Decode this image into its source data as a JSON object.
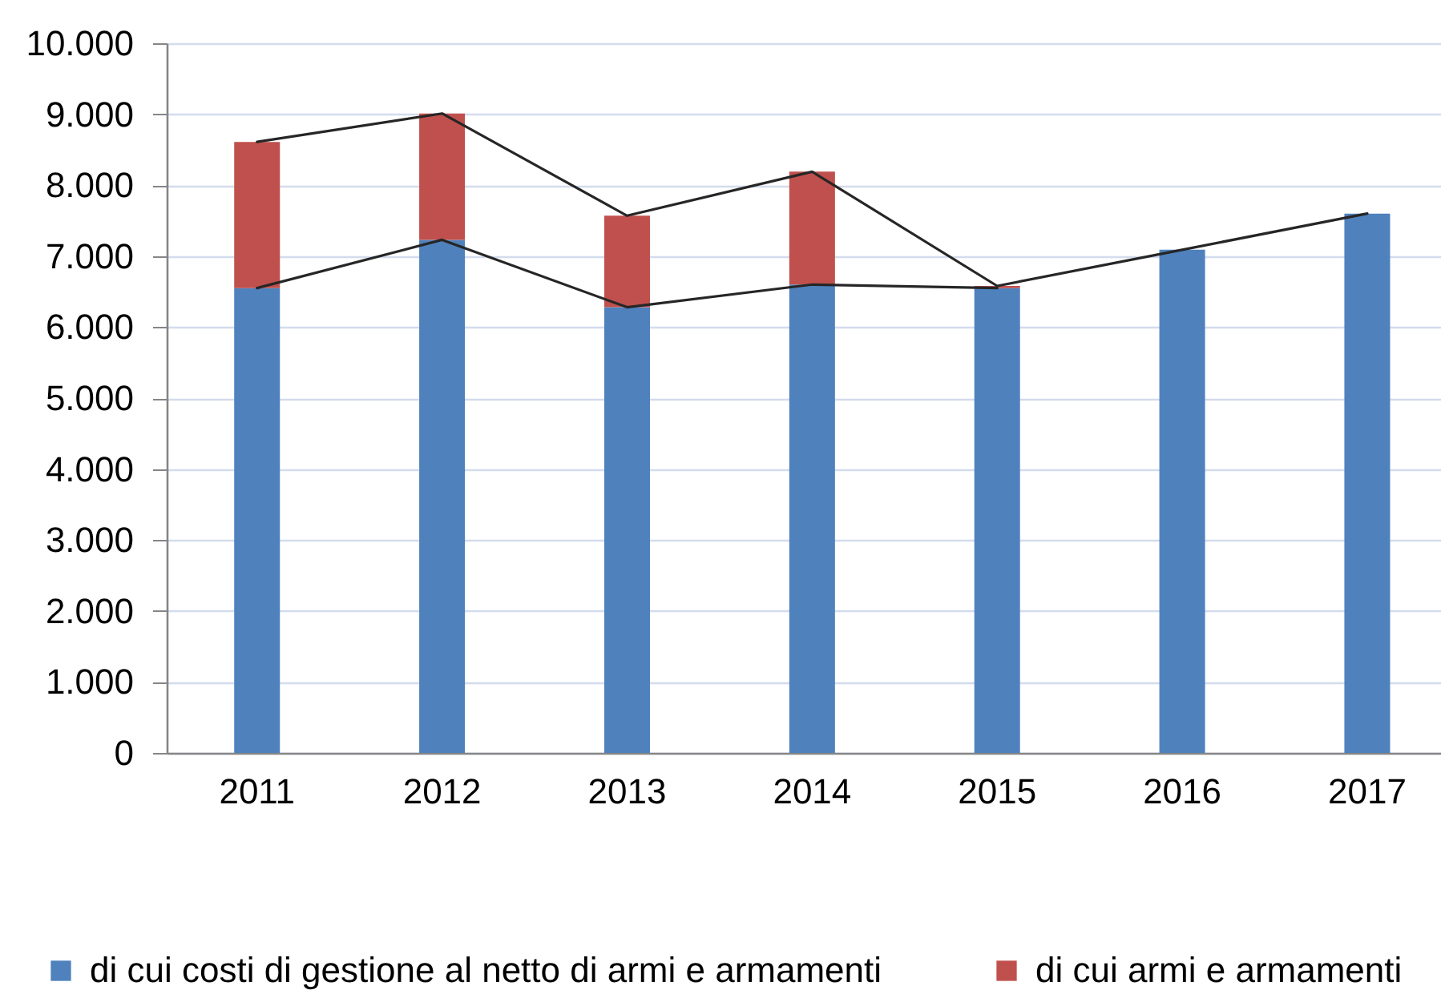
{
  "chart_data": {
    "type": "bar",
    "stacked": true,
    "categories": [
      "2011",
      "2012",
      "2013",
      "2014",
      "2015",
      "2016",
      "2017"
    ],
    "series": [
      {
        "name": "di cui costi di gestione al netto di armi e armamenti",
        "color": "#4f81bd",
        "values": [
          6550,
          7230,
          6280,
          6600,
          6550,
          7090,
          7600
        ]
      },
      {
        "name": "di cui armi e armamenti",
        "color": "#c0504d",
        "values": [
          2060,
          1780,
          1290,
          1590,
          30,
          null,
          null
        ]
      },
      {
        "type": "line",
        "color": "#262626",
        "values": [
          8610,
          9010,
          7570,
          8190,
          6580,
          7090,
          7600
        ]
      },
      {
        "type": "line",
        "color": "#262626",
        "values": [
          6550,
          7230,
          6280,
          6600,
          6550,
          null,
          null
        ]
      }
    ],
    "ylim": [
      0,
      10000
    ],
    "yticks": [
      0,
      {
        "value": 1000,
        "label": "1.000"
      },
      {
        "value": 2000,
        "label": "2.000"
      },
      {
        "value": 3000,
        "label": "3.000"
      },
      {
        "value": 4000,
        "label": "4.000"
      },
      {
        "value": 5000,
        "label": "5.000"
      },
      {
        "value": 6000,
        "label": "6.000"
      },
      {
        "value": 7000,
        "label": "7.000"
      },
      {
        "value": 8000,
        "label": "8.000"
      },
      {
        "value": 9000,
        "label": "9.000"
      },
      {
        "value": 10000,
        "label": "10.000"
      }
    ],
    "grid": "y",
    "legend": "bottom"
  }
}
